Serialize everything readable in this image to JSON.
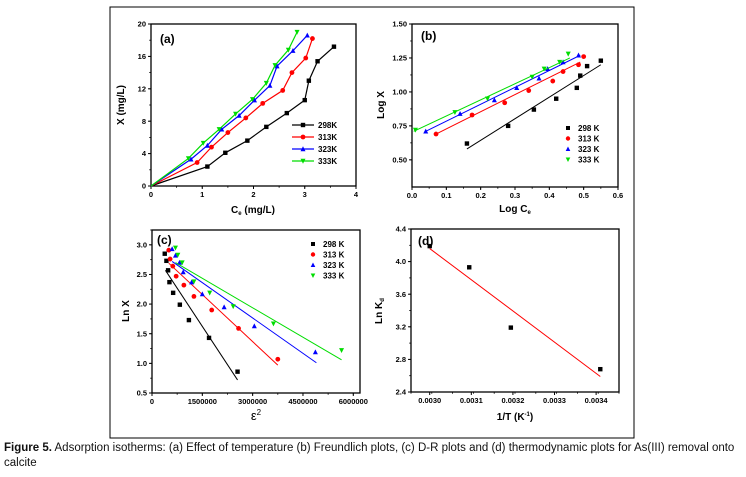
{
  "caption": {
    "label": "Figure 5.",
    "text": " Adsorption isotherms: (a) Effect of temperature (b) Freundlich plots, (c) D-R plots and (d) thermodynamic plots for As(III) removal onto calcite"
  },
  "colors": {
    "298": "#000000",
    "313": "#ff0000",
    "323": "#0000ff",
    "333": "#00dd00"
  },
  "chart_data": [
    {
      "panel": "(a)",
      "type": "line",
      "title": "",
      "xlabel": "Ce (mg/L)",
      "ylabel": "X (mg/L)",
      "xlim": [
        0,
        4
      ],
      "ylim": [
        0,
        20
      ],
      "xticks": [
        "0",
        "1",
        "2",
        "3",
        "4"
      ],
      "yticks": [
        "0",
        "4",
        "8",
        "12",
        "16",
        "20"
      ],
      "legend_position": "right-middle",
      "series": [
        {
          "name": "298K",
          "key": "298",
          "marker": "square",
          "x": [
            0,
            1.1,
            1.45,
            1.88,
            2.25,
            2.65,
            3.0,
            3.08,
            3.25,
            3.57
          ],
          "y": [
            0,
            2.4,
            4.1,
            5.6,
            7.3,
            9.0,
            10.6,
            13.0,
            15.4,
            17.2
          ]
        },
        {
          "name": "313K",
          "key": "313",
          "marker": "circle",
          "x": [
            0,
            0.9,
            1.18,
            1.5,
            1.85,
            2.18,
            2.57,
            2.75,
            3.02,
            3.15
          ],
          "y": [
            0,
            2.9,
            4.8,
            6.6,
            8.4,
            10.2,
            11.8,
            14.0,
            15.8,
            18.2
          ]
        },
        {
          "name": "323K",
          "key": "323",
          "marker": "triangle-up",
          "x": [
            0,
            0.78,
            1.1,
            1.38,
            1.72,
            2.02,
            2.32,
            2.46,
            2.77,
            3.05
          ],
          "y": [
            0,
            3.3,
            5.0,
            7.0,
            8.7,
            10.6,
            12.4,
            14.8,
            16.7,
            18.6
          ]
        },
        {
          "name": "333K",
          "key": "333",
          "marker": "triangle-down",
          "x": [
            0,
            0.73,
            1.02,
            1.33,
            1.65,
            1.98,
            2.25,
            2.42,
            2.68,
            2.85
          ],
          "y": [
            0,
            3.4,
            5.3,
            7.0,
            8.9,
            10.7,
            12.7,
            14.9,
            16.8,
            19.0
          ]
        }
      ]
    },
    {
      "panel": "(b)",
      "type": "scatter",
      "title": "",
      "xlabel": "Log Ce",
      "ylabel": "Log X",
      "xlim": [
        0,
        0.6
      ],
      "ylim": [
        0.3,
        1.5
      ],
      "xticks": [
        "0.0",
        "0.1",
        "0.2",
        "0.3",
        "0.4",
        "0.5",
        "0.6"
      ],
      "yticks": [
        "0.50",
        "0.75",
        "1.00",
        "1.25",
        "1.50"
      ],
      "legend_position": "bottom-right",
      "series": [
        {
          "name": "298 K",
          "key": "298",
          "marker": "square",
          "x": [
            0.16,
            0.28,
            0.355,
            0.42,
            0.48,
            0.49,
            0.51,
            0.55
          ],
          "y": [
            0.62,
            0.75,
            0.87,
            0.95,
            1.03,
            1.12,
            1.19,
            1.23
          ],
          "fit": [
            [
              0.16,
              0.58
            ],
            [
              0.55,
              1.2
            ]
          ]
        },
        {
          "name": "313 K",
          "key": "313",
          "marker": "circle",
          "x": [
            0.07,
            0.175,
            0.27,
            0.34,
            0.41,
            0.44,
            0.485,
            0.5
          ],
          "y": [
            0.69,
            0.83,
            0.92,
            1.01,
            1.08,
            1.15,
            1.2,
            1.26
          ],
          "fit": [
            [
              0.07,
              0.69
            ],
            [
              0.49,
              1.22
            ]
          ]
        },
        {
          "name": "323 K",
          "key": "323",
          "marker": "triangle-up",
          "x": [
            0.04,
            0.14,
            0.24,
            0.305,
            0.37,
            0.395,
            0.44,
            0.485
          ],
          "y": [
            0.71,
            0.84,
            0.94,
            1.03,
            1.1,
            1.17,
            1.22,
            1.27
          ],
          "fit": [
            [
              0.04,
              0.71
            ],
            [
              0.49,
              1.27
            ]
          ]
        },
        {
          "name": "333 K",
          "key": "333",
          "marker": "triangle-down",
          "x": [
            0.01,
            0.125,
            0.22,
            0.35,
            0.385,
            0.43,
            0.455
          ],
          "y": [
            0.72,
            0.85,
            0.95,
            1.11,
            1.17,
            1.22,
            1.28
          ],
          "fit": [
            [
              0.005,
              0.71
            ],
            [
              0.46,
              1.25
            ]
          ]
        }
      ]
    },
    {
      "panel": "(c)",
      "type": "scatter",
      "title": "",
      "xlabel": "ε²",
      "ylabel": "Ln X",
      "xlim": [
        0,
        6200000
      ],
      "ylim": [
        0.5,
        3.25
      ],
      "xticks": [
        "0",
        "1500000",
        "3000000",
        "4500000",
        "6000000"
      ],
      "yticks": [
        "0.5",
        "1.0",
        "1.5",
        "2.0",
        "2.5",
        "3.0"
      ],
      "legend_position": "top-right",
      "series": [
        {
          "name": "298 K",
          "key": "298",
          "marker": "square",
          "x": [
            380000,
            430000,
            480000,
            520000,
            630000,
            830000,
            1100000,
            1700000,
            2550000
          ],
          "y": [
            2.85,
            2.73,
            2.57,
            2.37,
            2.19,
            1.99,
            1.73,
            1.43,
            0.86
          ],
          "fit": [
            [
              400000,
              2.57
            ],
            [
              2550000,
              0.72
            ]
          ]
        },
        {
          "name": "313 K",
          "key": "313",
          "marker": "circle",
          "x": [
            500000,
            540000,
            620000,
            720000,
            950000,
            1250000,
            1780000,
            2580000,
            3750000
          ],
          "y": [
            2.91,
            2.76,
            2.64,
            2.47,
            2.32,
            2.13,
            1.9,
            1.59,
            1.07
          ],
          "fit": [
            [
              500000,
              2.69
            ],
            [
              3750000,
              0.97
            ]
          ]
        },
        {
          "name": "323 K",
          "key": "323",
          "marker": "triangle-up",
          "x": [
            600000,
            700000,
            820000,
            930000,
            1180000,
            1500000,
            2150000,
            3050000,
            4870000
          ],
          "y": [
            2.93,
            2.82,
            2.7,
            2.54,
            2.37,
            2.17,
            1.95,
            1.63,
            1.19
          ],
          "fit": [
            [
              600000,
              2.72
            ],
            [
              4900000,
              1.01
            ]
          ]
        },
        {
          "name": "333 K",
          "key": "333",
          "marker": "triangle-down",
          "x": [
            700000,
            770000,
            900000,
            1250000,
            1720000,
            2420000,
            3620000,
            5650000
          ],
          "y": [
            2.95,
            2.83,
            2.7,
            2.38,
            2.19,
            1.96,
            1.67,
            1.22
          ],
          "fit": [
            [
              700000,
              2.7
            ],
            [
              5650000,
              1.06
            ]
          ]
        }
      ]
    },
    {
      "panel": "(d)",
      "type": "scatter",
      "title": "",
      "xlabel": "1/T (K⁻¹)",
      "ylabel": "Ln Kd",
      "xlim": [
        0.002955,
        0.003455
      ],
      "ylim": [
        2.4,
        4.4
      ],
      "xticks": [
        "0.0030",
        "0.0031",
        "0.0032",
        "0.0033",
        "0.0034"
      ],
      "yticks": [
        "2.4",
        "2.8",
        "3.2",
        "3.6",
        "4.0",
        "4.4"
      ],
      "series": [
        {
          "name": "Ln Kd",
          "key": "298",
          "marker": "square",
          "x": [
            0.003,
            0.003095,
            0.003195,
            0.00341
          ],
          "y": [
            4.19,
            3.93,
            3.19,
            2.68
          ],
          "fit": [
            [
              0.003,
              4.16
            ],
            [
              0.00341,
              2.59
            ]
          ],
          "fit_color": "#ff0000"
        }
      ]
    }
  ]
}
